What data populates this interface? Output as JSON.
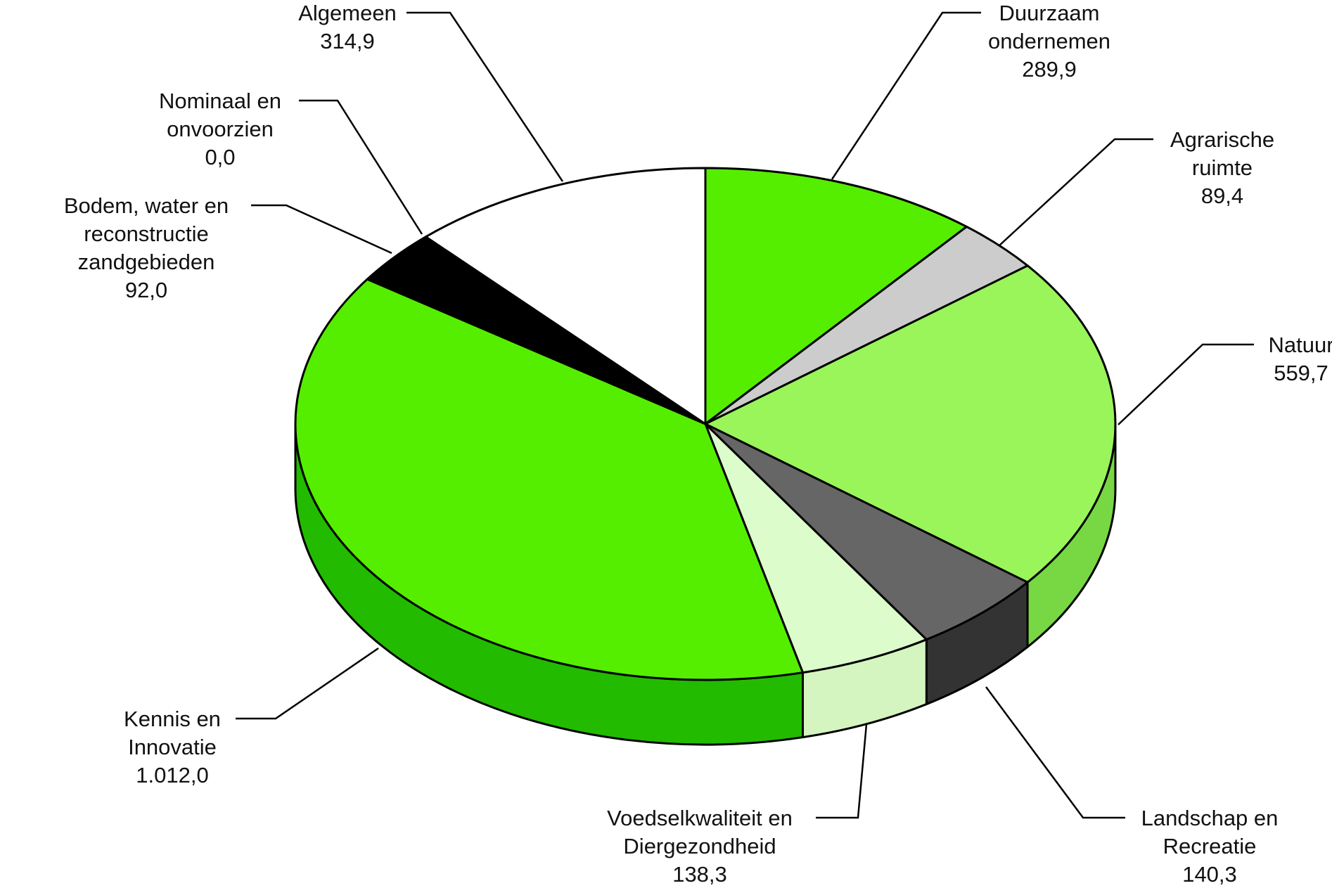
{
  "chart_data": {
    "type": "pie",
    "style": "3d-exploded-none",
    "title": "",
    "slices": [
      {
        "name": "Duurzaam ondernemen",
        "label_lines": [
          "Duurzaam",
          "ondernemen"
        ],
        "value_label": "289,9",
        "value": 289.9,
        "color": "#55ee00"
      },
      {
        "name": "Agrarische ruimte",
        "label_lines": [
          "Agrarische",
          "ruimte"
        ],
        "value_label": "89,4",
        "value": 89.4,
        "color": "#cccccc"
      },
      {
        "name": "Natuur",
        "label_lines": [
          "Natuur"
        ],
        "value_label": "559,7",
        "value": 559.7,
        "color": "#99f55a"
      },
      {
        "name": "Landschap en Recreatie",
        "label_lines": [
          "Landschap en",
          "Recreatie"
        ],
        "value_label": "140,3",
        "value": 140.3,
        "color": "#666666"
      },
      {
        "name": "Voedselkwaliteit en Diergezondheid",
        "label_lines": [
          "Voedselkwaliteit en",
          "Diergezondheid"
        ],
        "value_label": "138,3",
        "value": 138.3,
        "color": "#ddfccc"
      },
      {
        "name": "Kennis en Innovatie",
        "label_lines": [
          "Kennis en",
          "Innovatie"
        ],
        "value_label": "1.012,0",
        "value": 1012.0,
        "color": "#55ee00"
      },
      {
        "name": "Bodem, water en reconstructie zandgebieden",
        "label_lines": [
          "Bodem, water en",
          "reconstructie",
          "zandgebieden"
        ],
        "value_label": "92,0",
        "value": 92.0,
        "color": "#000000"
      },
      {
        "name": "Nominaal en onvoorzien",
        "label_lines": [
          "Nominaal en",
          "onvoorzien"
        ],
        "value_label": "0,0",
        "value": 0.0,
        "color": "#000000"
      },
      {
        "name": "Algemeen",
        "label_lines": [
          "Algemeen"
        ],
        "value_label": "314,9",
        "value": 314.9,
        "color": "#ffffff"
      }
    ]
  }
}
